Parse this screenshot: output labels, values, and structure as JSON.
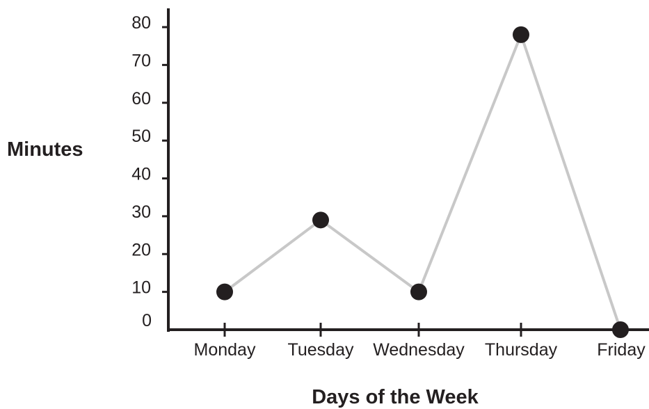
{
  "chart_data": {
    "type": "line",
    "title": "",
    "xlabel": "Days of the Week",
    "ylabel": "Minutes",
    "categories": [
      "Monday",
      "Tuesday",
      "Wednesday",
      "Thursday",
      "Friday"
    ],
    "series": [
      {
        "values": [
          10,
          29,
          10,
          78,
          0
        ]
      }
    ],
    "ylim": [
      0,
      80
    ],
    "yticks": [
      "0",
      "10",
      "20",
      "30",
      "40",
      "50",
      "60",
      "70",
      "80"
    ],
    "grid": false,
    "legend": "none",
    "colors": {
      "line": "#c8c8c8",
      "marker": "#231f20",
      "axis": "#231f20",
      "text": "#231f20"
    }
  }
}
